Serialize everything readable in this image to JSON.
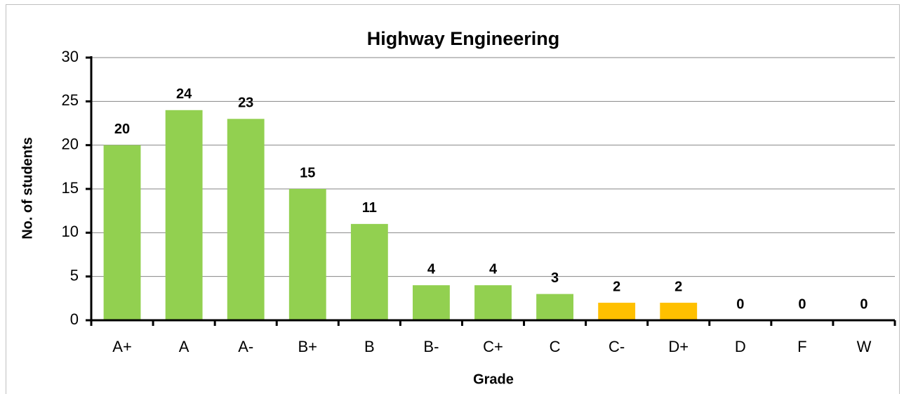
{
  "chart_data": {
    "type": "bar",
    "title": "Highway Engineering",
    "x_label": "Grade",
    "y_label": "No. of students",
    "categories": [
      "A+",
      "A",
      "A-",
      "B+",
      "B",
      "B-",
      "C+",
      "C",
      "C-",
      "D+",
      "D",
      "F",
      "W"
    ],
    "values": [
      20,
      24,
      23,
      15,
      11,
      4,
      4,
      3,
      2,
      2,
      0,
      0,
      0
    ],
    "colors": [
      "#92d050",
      "#92d050",
      "#92d050",
      "#92d050",
      "#92d050",
      "#92d050",
      "#92d050",
      "#92d050",
      "#ffc000",
      "#ffc000",
      "#ffc000",
      "#ffc000",
      "#ffc000"
    ],
    "ylim": [
      0,
      30
    ],
    "yticks": [
      0,
      5,
      10,
      15,
      20,
      25,
      30
    ],
    "grid": true
  }
}
